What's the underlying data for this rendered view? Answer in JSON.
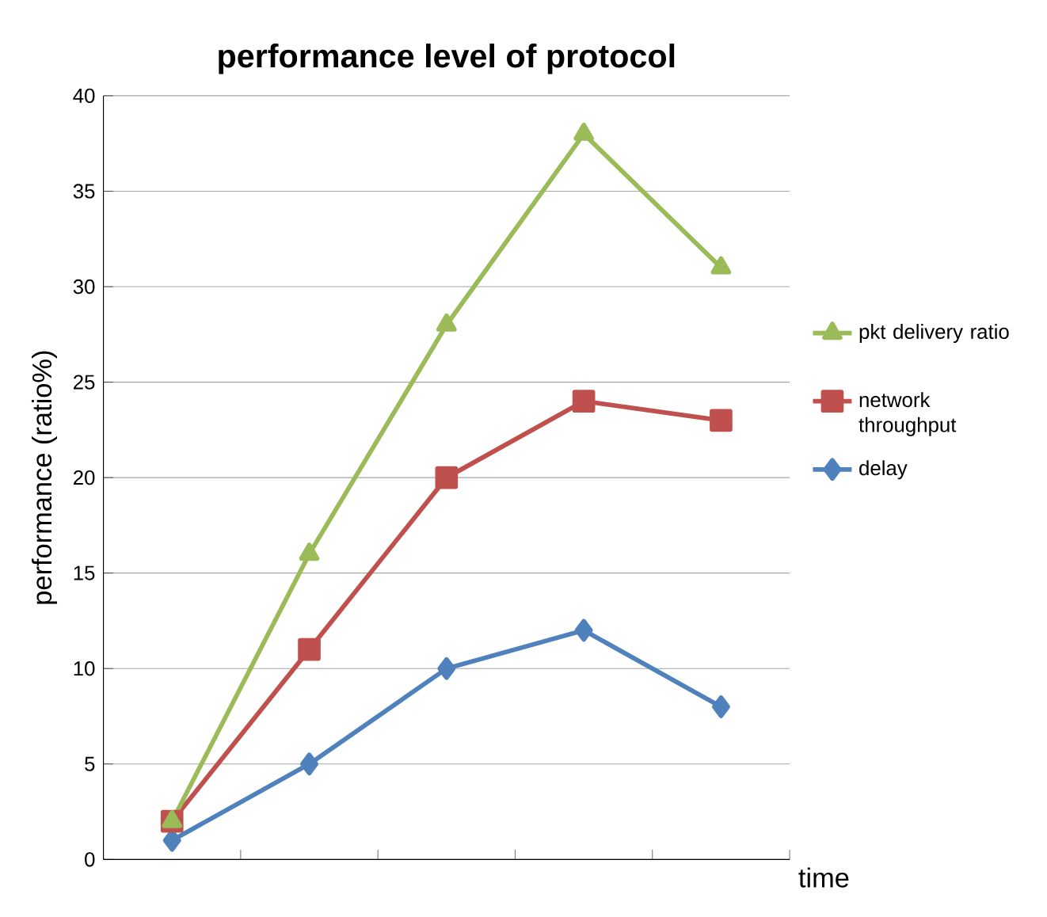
{
  "chart_data": {
    "type": "line",
    "title": "performance level of protocol",
    "xlabel": "time",
    "ylabel": "performance (ratio%)",
    "categories": [
      null,
      null,
      null,
      null,
      null
    ],
    "series": [
      {
        "name": "pkt delivery ratio",
        "color": "#9bbb59",
        "marker": "triangle",
        "values": [
          2,
          16,
          28,
          38,
          31
        ]
      },
      {
        "name": "network throughput",
        "color": "#c0504d",
        "marker": "square",
        "values": [
          2,
          11,
          20,
          24,
          23
        ]
      },
      {
        "name": "delay",
        "color": "#4f81bd",
        "marker": "diamond",
        "values": [
          1,
          5,
          10,
          12,
          8
        ]
      }
    ],
    "ylim": [
      0,
      40
    ],
    "yticks": [
      0,
      5,
      10,
      15,
      20,
      25,
      30,
      35,
      40
    ],
    "grid": "y",
    "legend": "right"
  }
}
